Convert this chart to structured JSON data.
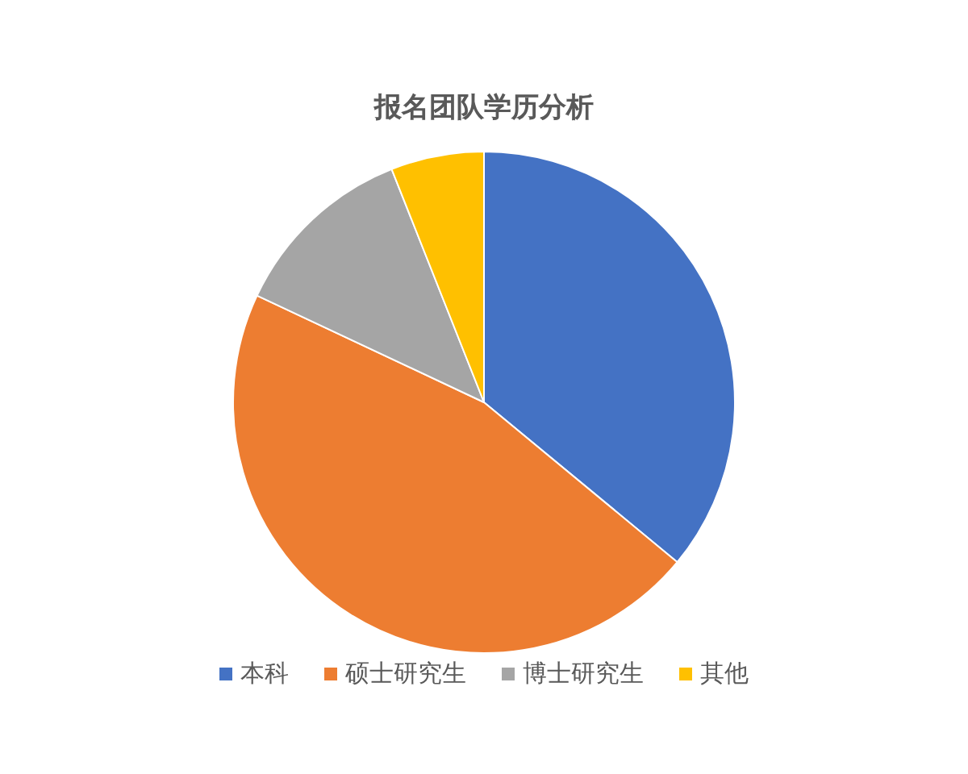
{
  "chart_data": {
    "type": "pie",
    "title": "报名团队学历分析",
    "categories": [
      "本科",
      "硕士研究生",
      "博士研究生",
      "其他"
    ],
    "values": [
      36,
      46,
      12,
      6
    ],
    "colors": [
      "#4472c4",
      "#ed7d31",
      "#a5a5a5",
      "#ffc000"
    ],
    "legend": "bottom"
  }
}
